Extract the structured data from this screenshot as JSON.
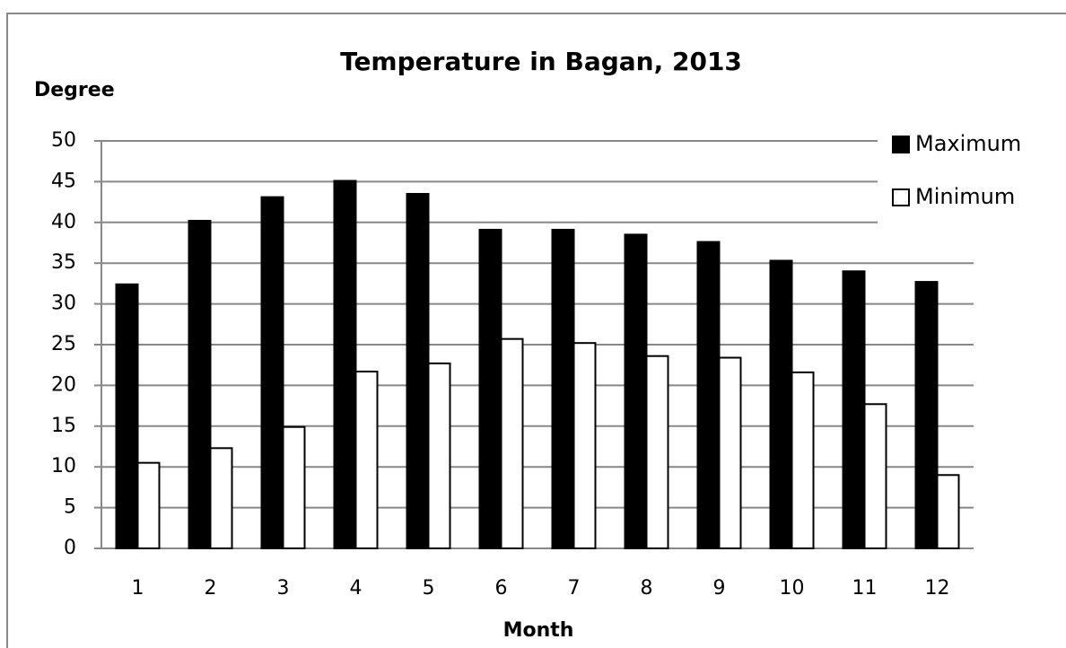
{
  "chart_data": {
    "type": "bar",
    "title": "Temperature in Bagan, 2013",
    "y_label": "Degree",
    "x_label": "Month",
    "categories": [
      "1",
      "2",
      "3",
      "4",
      "5",
      "6",
      "7",
      "8",
      "9",
      "10",
      "11",
      "12"
    ],
    "series": [
      {
        "name": "Maximum",
        "color": "#000000",
        "values": [
          32.4,
          40.2,
          43.1,
          45.1,
          43.5,
          39.1,
          39.1,
          38.5,
          37.6,
          35.3,
          34.0,
          32.7
        ]
      },
      {
        "name": "Minimum",
        "color": "#ffffff",
        "values": [
          10.5,
          12.3,
          14.9,
          21.7,
          22.7,
          25.7,
          25.2,
          23.6,
          23.4,
          21.6,
          17.7,
          9.0
        ]
      }
    ],
    "ylim": [
      0,
      50
    ],
    "yticks": [
      0,
      5,
      10,
      15,
      20,
      25,
      30,
      35,
      40,
      45,
      50
    ],
    "grid": true,
    "legend": "right"
  }
}
